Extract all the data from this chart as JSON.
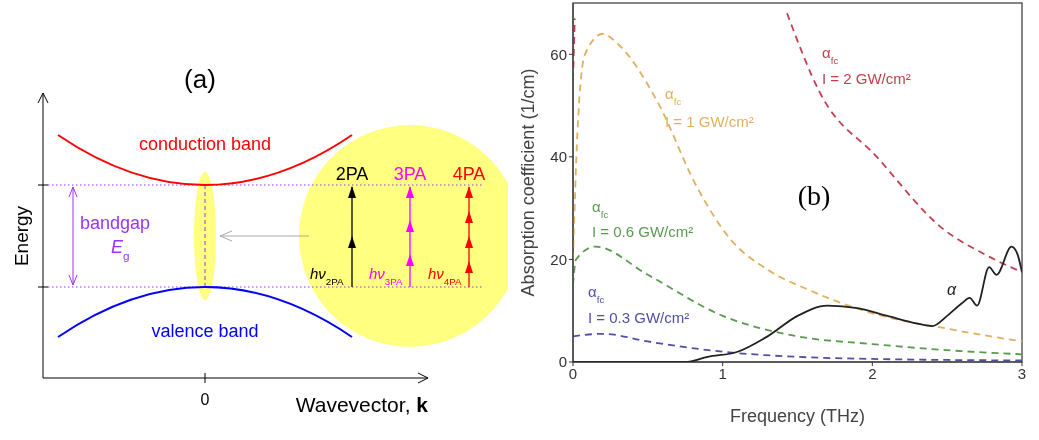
{
  "chart_data": [
    {
      "type": "other",
      "title": "(a)",
      "xlabel": "Wavevector, **k**",
      "ylabel": "Energy",
      "annotations": [
        "conduction band",
        "valence band",
        "bandgap",
        "E$_{g}$",
        "2PA",
        "3PA",
        "4PA",
        "hν$_{2PA}$",
        "hν$_{3PA}$",
        "hν$_{4PA}$",
        "0"
      ]
    },
    {
      "type": "line",
      "xlabel": "Frequency (THz)",
      "ylabel": "Absorption coefficient (1/cm)",
      "xlim": [
        0,
        3
      ],
      "xticks": [
        0,
        1,
        2,
        3
      ],
      "ylim": [
        0,
        70
      ],
      "yticks": [
        0,
        20,
        40,
        60
      ],
      "marker": "none",
      "series": [
        {
          "color": "#c0404f",
          "line_style": "dashed",
          "x": [
            0,
            0.012,
            0.03,
            1.43,
            1.65,
            2.03,
            2.47,
            2.75,
            3
          ],
          "values": [
            55,
            67,
            null,
            68,
            52.5,
            40,
            26,
            21,
            17.5
          ]
        },
        {
          "color": "#e0b060",
          "line_style": "dashed",
          "x": [
            0,
            0.03,
            0.08,
            0.2,
            0.3,
            0.56,
            0.83,
            1.05,
            1.3,
            1.58,
            2,
            2.5,
            3
          ],
          "values": [
            20,
            45,
            60,
            64,
            62,
            51,
            34,
            24,
            18,
            14,
            9.5,
            6.5,
            4
          ]
        },
        {
          "color": "#5a9a50",
          "line_style": "dashed",
          "x": [
            0,
            0.02,
            0.15,
            0.5,
            1,
            1.5,
            2,
            2.5,
            3
          ],
          "values": [
            15,
            20,
            22.5,
            17,
            9,
            5,
            3.5,
            2.3,
            1.5
          ]
        },
        {
          "color": "#5050a0",
          "line_style": "dashed",
          "x": [
            0,
            0.2,
            0.5,
            1,
            1.5,
            2,
            2.5,
            3
          ],
          "values": [
            5,
            5.5,
            4,
            2,
            1,
            0.6,
            0.4,
            0.3
          ]
        },
        {
          "color": "#202020",
          "line_style": "solid",
          "x": [
            0,
            0.4,
            0.75,
            0.9,
            1.1,
            1.3,
            1.5,
            1.7,
            1.9,
            2.1,
            2.3,
            2.4,
            2.5,
            2.6,
            2.65,
            2.7,
            2.78,
            2.83,
            2.93,
            2.97,
            3
          ],
          "values": [
            0,
            0,
            0,
            1,
            2,
            5,
            9,
            11,
            10.5,
            9,
            7.5,
            7,
            9,
            11.5,
            12.5,
            11,
            18.5,
            17,
            22.5,
            21,
            17.5
          ]
        }
      ],
      "annotations": [
        "α$_{fc}$",
        "I = 2 GW/cm²",
        "α$_{fc}$",
        "I = 1 GW/cm²",
        "α$_{fc}$",
        "I = 0.6 GW/cm²",
        "α$_{fc}$",
        "I = 0.3 GW/cm²",
        "α",
        "(b)"
      ]
    }
  ]
}
